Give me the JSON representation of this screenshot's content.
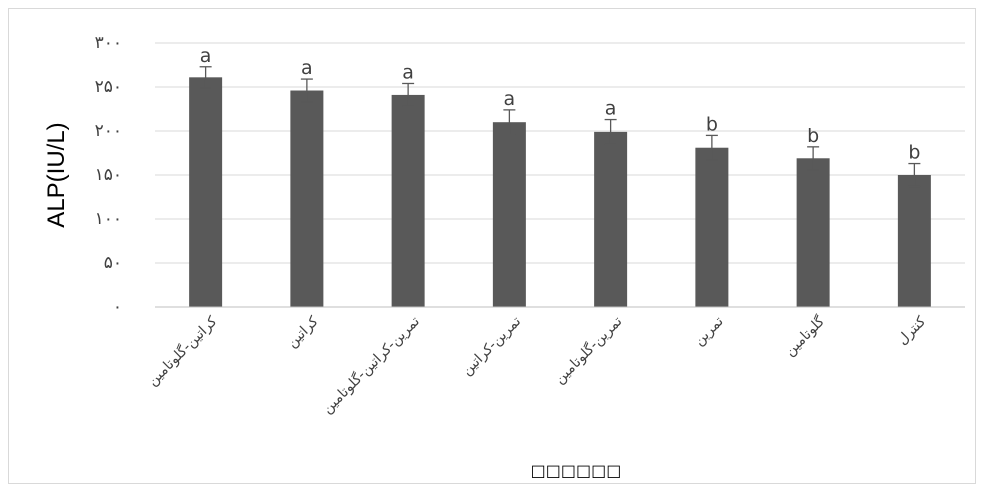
{
  "chart_data": {
    "type": "bar",
    "ylabel": "ALP(IU/L)",
    "xlabel": "□□□□□□",
    "ylim": [
      0,
      300
    ],
    "yticks": [
      {
        "value": 0,
        "label": "۰"
      },
      {
        "value": 50,
        "label": "۵۰"
      },
      {
        "value": 100,
        "label": "۱۰۰"
      },
      {
        "value": 150,
        "label": "۱۵۰"
      },
      {
        "value": 200,
        "label": "۲۰۰"
      },
      {
        "value": 250,
        "label": "۲۵۰"
      },
      {
        "value": 300,
        "label": "۳۰۰"
      }
    ],
    "grid": true,
    "bars": [
      {
        "category": "کراتین-گلوتامین",
        "value": 261,
        "error": 12,
        "letter": "a"
      },
      {
        "category": "کراتین",
        "value": 246,
        "error": 13,
        "letter": "a"
      },
      {
        "category": "تمرین-کراتین-گلوتامین",
        "value": 241,
        "error": 13,
        "letter": "a"
      },
      {
        "category": "تمرین-کراتین",
        "value": 210,
        "error": 14,
        "letter": "a"
      },
      {
        "category": "تمرین-گلوتامین",
        "value": 199,
        "error": 14,
        "letter": "a"
      },
      {
        "category": "تمرین",
        "value": 181,
        "error": 14,
        "letter": "b"
      },
      {
        "category": "گلوتامین",
        "value": 169,
        "error": 13,
        "letter": "b"
      },
      {
        "category": "کنترل",
        "value": 150,
        "error": 13,
        "letter": "b"
      }
    ]
  },
  "colors": {
    "bar": "#595959",
    "error_bar": "#595959",
    "grid": "#d9d9d9",
    "axis": "#bfbfbf",
    "text": "#404040",
    "ylabel_text": "#000000"
  }
}
